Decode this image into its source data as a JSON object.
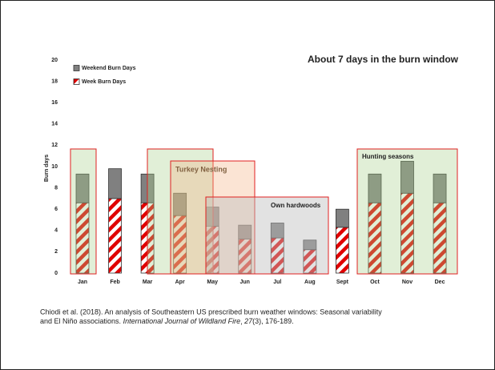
{
  "chart_data": {
    "type": "stacked_bar",
    "title": "About 7 days in the burn window",
    "y_label": "Burn days",
    "categories": [
      "Jan",
      "Feb",
      "Mar",
      "Apr",
      "May",
      "Jun",
      "Jul",
      "Aug",
      "Sept",
      "Oct",
      "Nov",
      "Dec"
    ],
    "series": [
      {
        "name": "Weekend Burn Days",
        "color": "#808080",
        "values": [
          2.7,
          2.8,
          2.7,
          2.1,
          1.8,
          1.3,
          1.4,
          0.9,
          1.7,
          2.7,
          3.0,
          2.7
        ]
      },
      {
        "name": "Week Burn Days",
        "color": "#e00000",
        "values": [
          6.6,
          7.0,
          6.6,
          5.4,
          4.4,
          3.2,
          3.3,
          2.2,
          4.3,
          6.6,
          7.5,
          6.6
        ]
      }
    ],
    "ylim": [
      0,
      20
    ],
    "yticks": [
      0,
      2,
      4,
      6,
      8,
      10,
      12,
      14,
      16,
      18,
      20
    ],
    "annotations": [
      "Turkey Nesting",
      "Own hardwoods",
      "Hunting seasons"
    ]
  },
  "citation": {
    "line1": "Chiodi et al. (2018). An analysis of Southeastern US prescribed burn weather windows: Seasonal variability",
    "line2_start": "and El Niño associations.",
    "journal": "International Journal of Wildland Fire",
    "volume": "27",
    "issue_pages": "(3), 176-189."
  }
}
